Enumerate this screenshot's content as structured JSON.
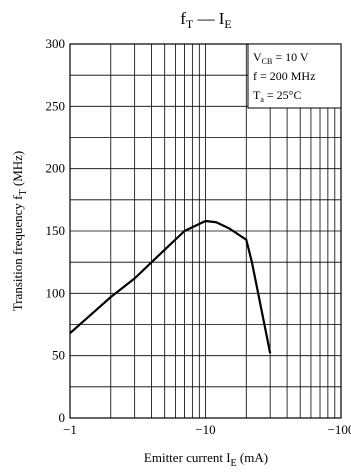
{
  "chart_data": {
    "type": "line",
    "title": {
      "main": "f",
      "sub": "T",
      "sep": " — ",
      "main2": "I",
      "sub2": "E"
    },
    "y_label": {
      "pre": "Transition frequency  f",
      "sub": "T",
      "post": "  (MHz)"
    },
    "x_label": {
      "pre": "Emitter current  I",
      "sub": "E",
      "post": "  (mA)"
    },
    "conditions": [
      {
        "main": "V",
        "sub": "CB",
        "rest": " = 10 V"
      },
      {
        "main": "f = 200 MHz"
      },
      {
        "main": "T",
        "sub": "a",
        "rest": " = 25°C"
      }
    ],
    "x_scale": "log",
    "xlim": [
      -1,
      -100
    ],
    "xticks": [
      {
        "value": -1,
        "label": "−1"
      },
      {
        "value": -10,
        "label": "−10"
      },
      {
        "value": -100,
        "label": "−100"
      }
    ],
    "xminor": [
      -2,
      -3,
      -4,
      -5,
      -6,
      -7,
      -8,
      -9,
      -20,
      -30,
      -40,
      -50,
      -60,
      -70,
      -80,
      -90
    ],
    "ylim": [
      0,
      300
    ],
    "yticks": [
      0,
      50,
      100,
      150,
      200,
      250,
      300
    ],
    "yminor": [
      25,
      75,
      125,
      175,
      225,
      275
    ],
    "grid": true,
    "series": [
      {
        "name": "fT",
        "color": "#000000",
        "x": [
          -1,
          -2,
          -3,
          -5,
          -7,
          -10,
          -12,
          -15,
          -20,
          -22,
          -25,
          -30
        ],
        "values": [
          68,
          97,
          112,
          135,
          150,
          158,
          157,
          152,
          143,
          125,
          95,
          52
        ]
      }
    ]
  }
}
